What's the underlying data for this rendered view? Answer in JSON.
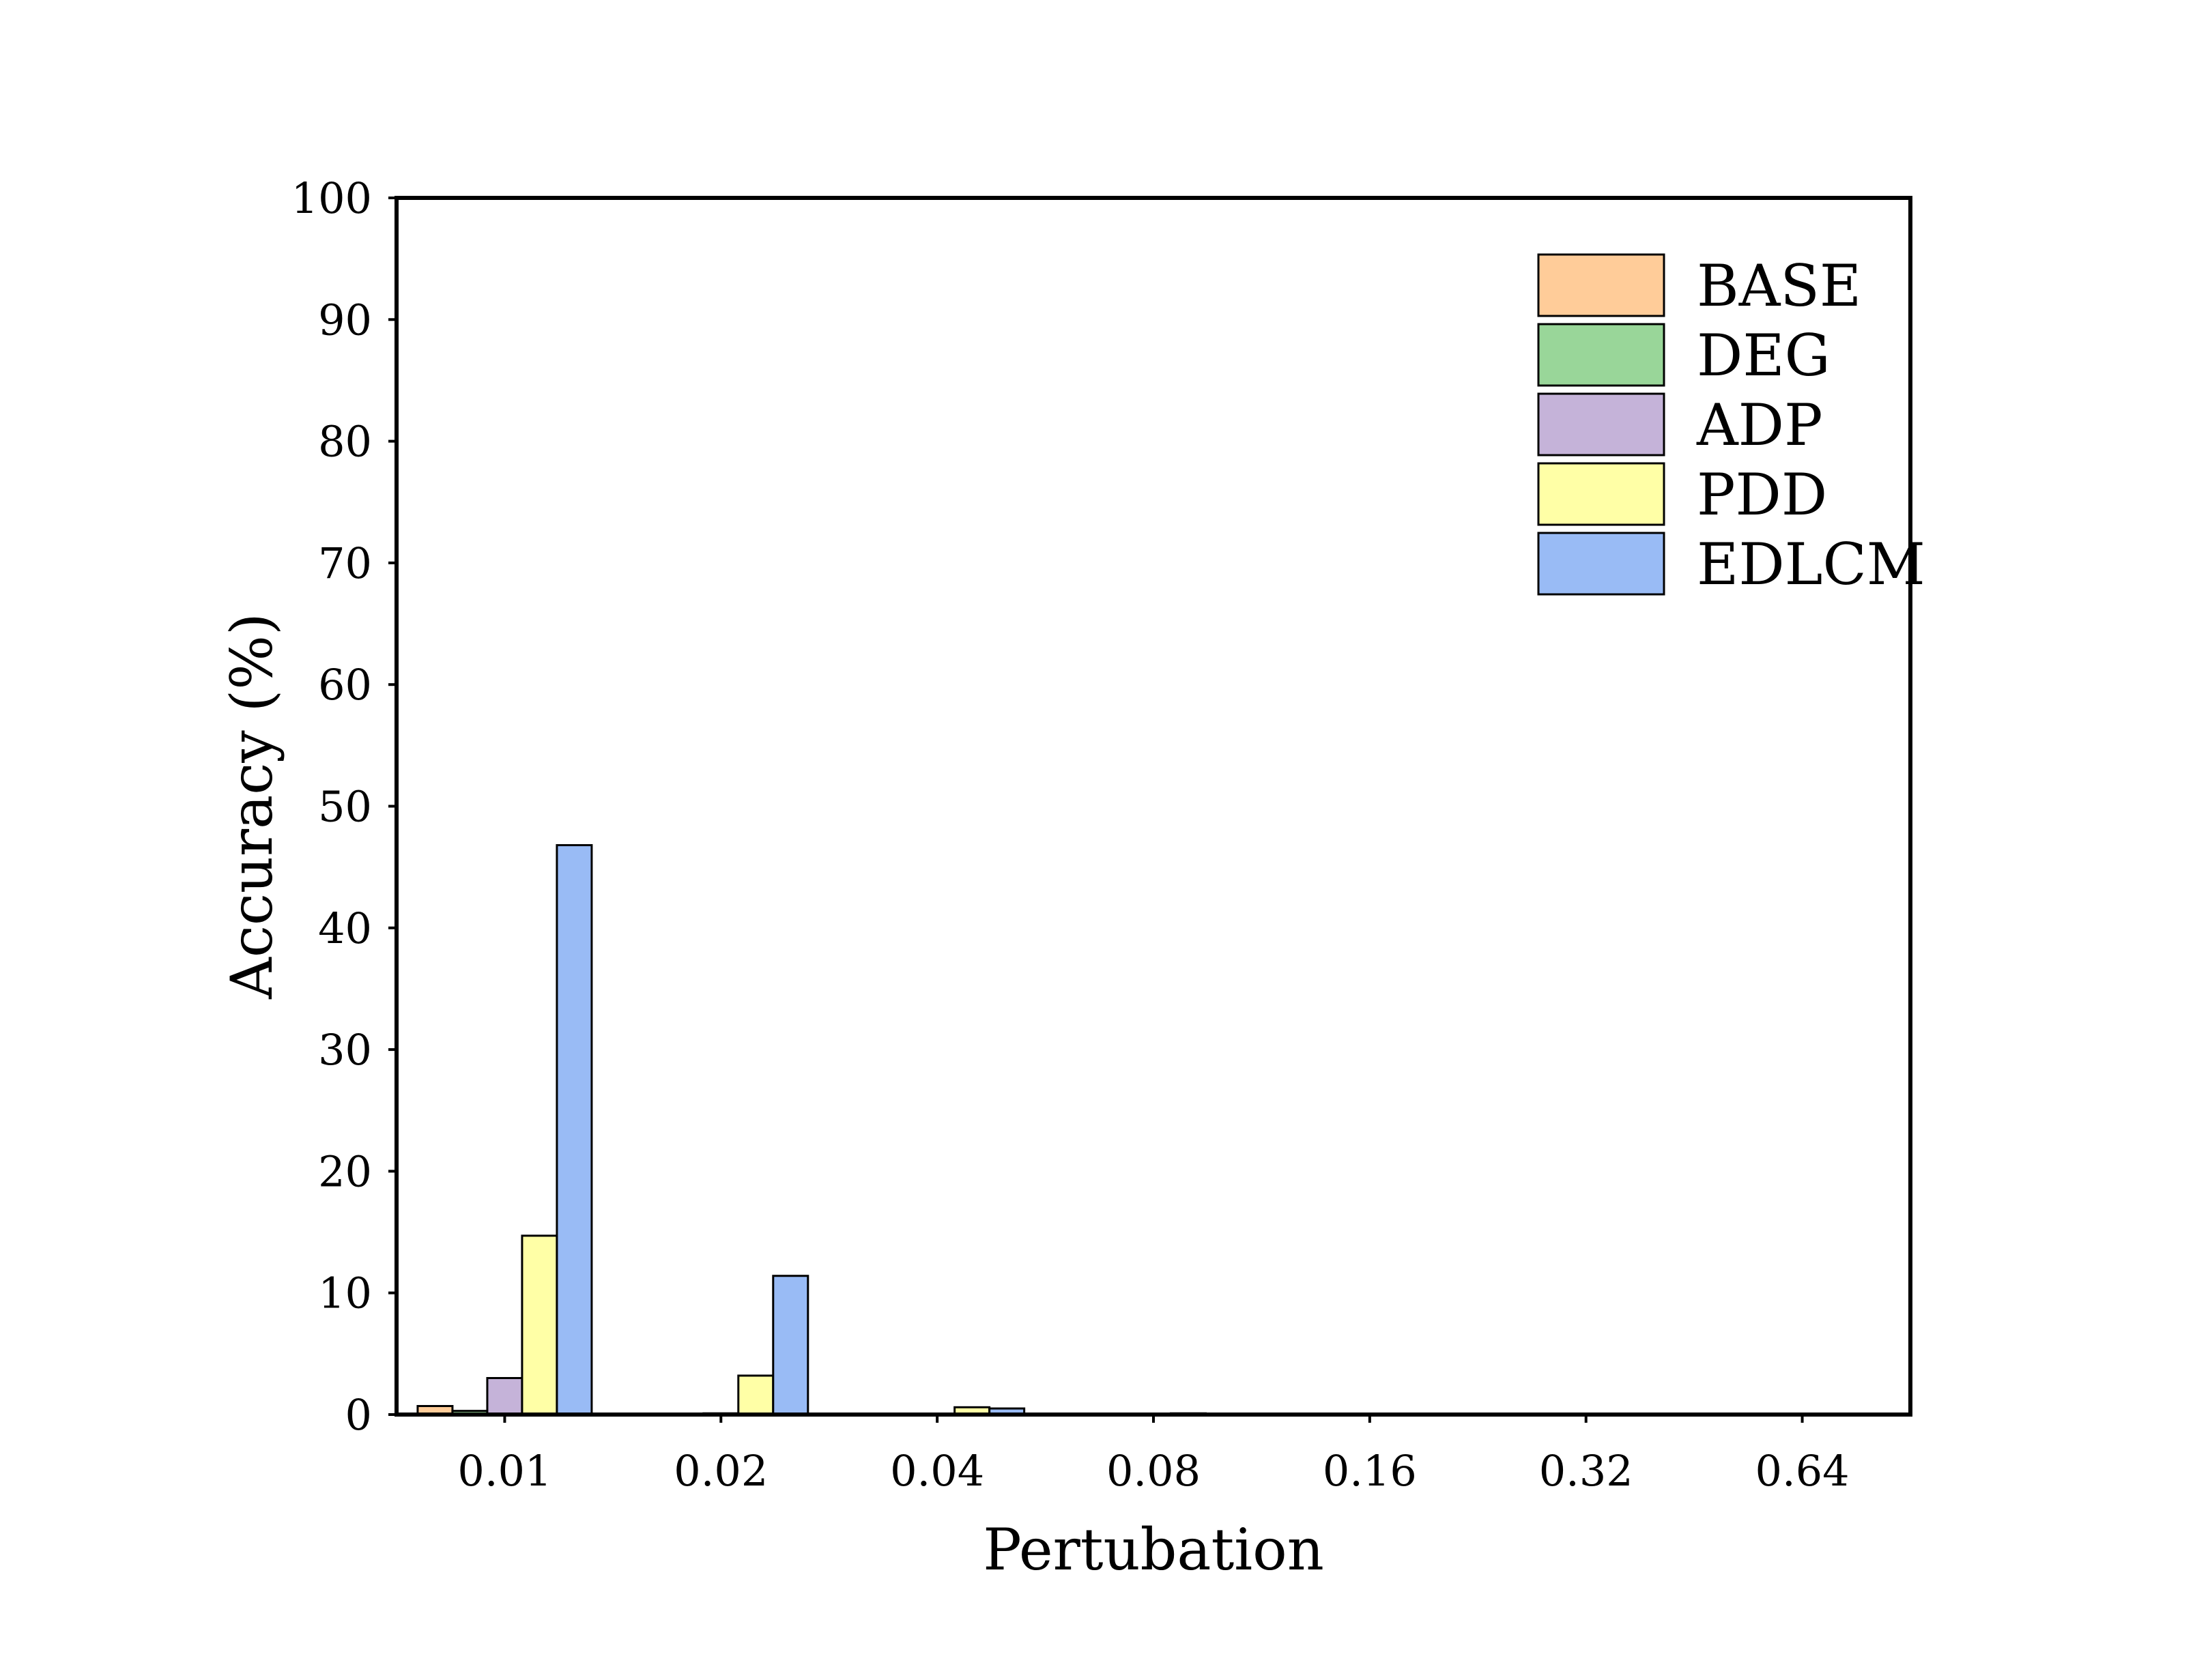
{
  "chart_data": {
    "type": "bar",
    "xlabel": "Pertubation",
    "ylabel": "Accuracy (%)",
    "categories": [
      "0.01",
      "0.02",
      "0.04",
      "0.08",
      "0.16",
      "0.32",
      "0.64"
    ],
    "ylim": [
      0,
      100
    ],
    "yticks": [
      0,
      10,
      20,
      30,
      40,
      50,
      60,
      70,
      80,
      90,
      100
    ],
    "grid": false,
    "legend_position": "top-right",
    "series": [
      {
        "name": "BASE",
        "color": "#ffcc99",
        "values": [
          0.7,
          0,
          0,
          0,
          0,
          0,
          0
        ]
      },
      {
        "name": "DEG",
        "color": "#99d699",
        "values": [
          0.3,
          0,
          0,
          0,
          0,
          0,
          0
        ]
      },
      {
        "name": "ADP",
        "color": "#c5b3d9",
        "values": [
          3.0,
          0.1,
          0,
          0,
          0,
          0,
          0
        ]
      },
      {
        "name": "PDD",
        "color": "#ffffa6",
        "values": [
          14.7,
          3.2,
          0.6,
          0.1,
          0,
          0,
          0
        ]
      },
      {
        "name": "EDLCM",
        "color": "#99bbf5",
        "values": [
          46.8,
          11.4,
          0.5,
          0,
          0,
          0,
          0
        ]
      }
    ]
  }
}
